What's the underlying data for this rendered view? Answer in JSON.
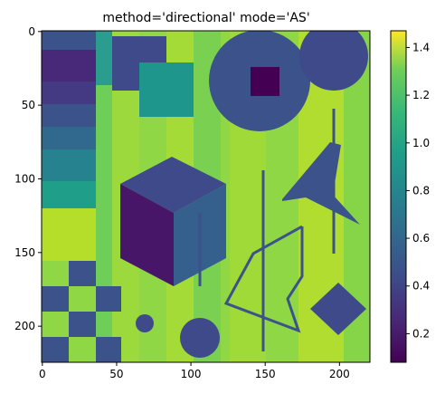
{
  "chart_data": {
    "type": "image",
    "title": "method='directional' mode='AS'",
    "xlim": [
      -0.5,
      220.5
    ],
    "xticks": [
      0,
      50,
      100,
      150,
      200
    ],
    "ylim": [
      224.5,
      -0.5
    ],
    "yticks": [
      0,
      50,
      100,
      150,
      200
    ],
    "clim": [
      0.08,
      1.47
    ],
    "cticks": [
      0.2,
      0.4,
      0.6,
      0.8,
      {
        "value": 1,
        "label": "1.0"
      },
      1.2,
      1.4
    ]
  }
}
